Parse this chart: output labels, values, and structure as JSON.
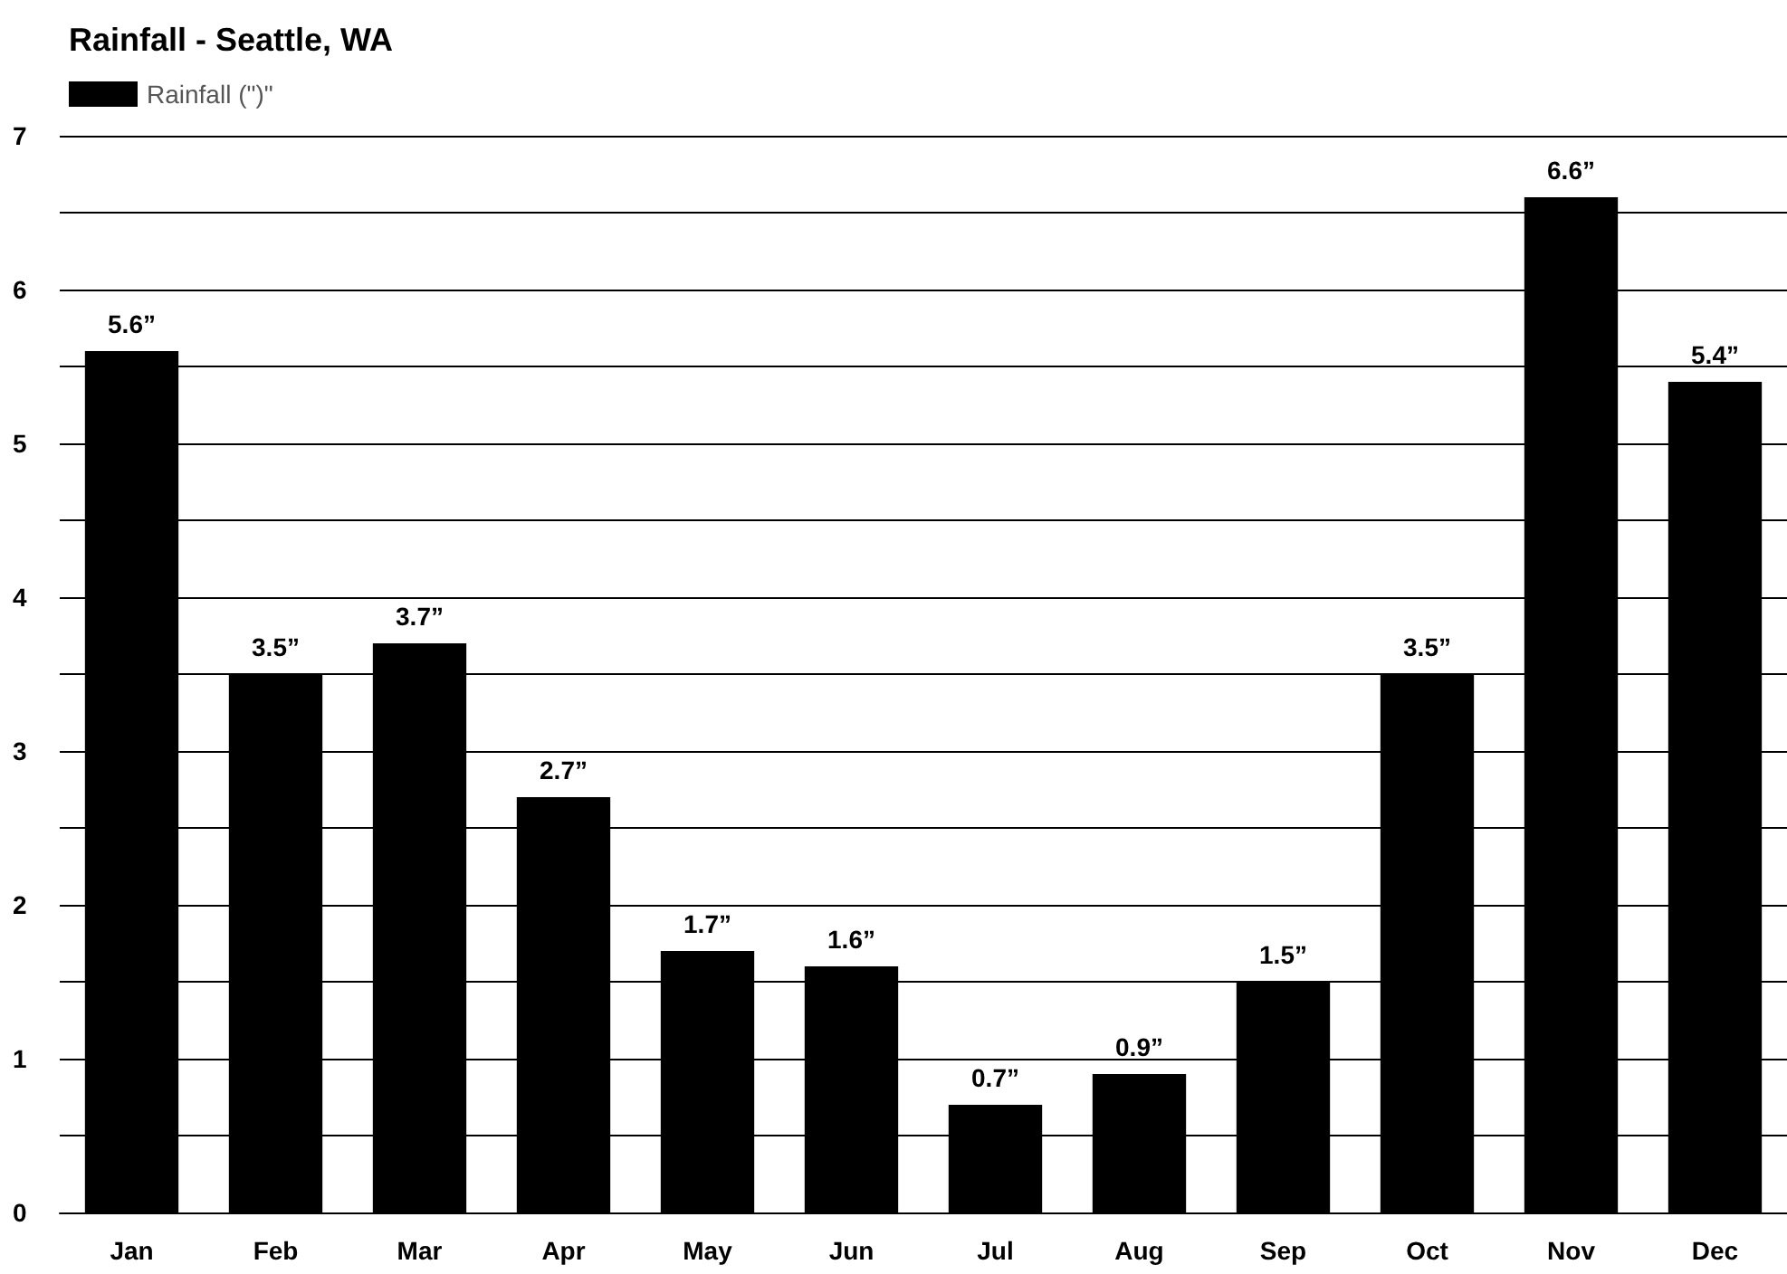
{
  "chart_data": {
    "type": "bar",
    "title": "Rainfall - Seattle, WA",
    "categories": [
      "Jan",
      "Feb",
      "Mar",
      "Apr",
      "May",
      "Jun",
      "Jul",
      "Aug",
      "Sep",
      "Oct",
      "Nov",
      "Dec"
    ],
    "series": [
      {
        "name": "Rainfall (\")\"",
        "color": "#000000",
        "values": [
          5.6,
          3.5,
          3.7,
          2.7,
          1.7,
          1.6,
          0.7,
          0.9,
          1.5,
          3.5,
          6.6,
          5.4
        ],
        "value_labels": [
          "5.6”",
          "3.5”",
          "3.7”",
          "2.7”",
          "1.7”",
          "1.6”",
          "0.7”",
          "0.9”",
          "1.5”",
          "3.5”",
          "6.6”",
          "5.4”"
        ]
      }
    ],
    "ylim": [
      0,
      7
    ],
    "yticks": [
      0,
      {
        "value": 0.5,
        "label": null
      },
      1,
      {
        "value": 1.5,
        "label": null
      },
      2,
      {
        "value": 2.5,
        "label": null
      },
      3,
      {
        "value": 3.5,
        "label": null
      },
      4,
      {
        "value": 4.5,
        "label": null
      },
      5,
      {
        "value": 5.5,
        "label": null
      },
      6,
      {
        "value": 6.5,
        "label": null
      },
      7
    ],
    "grid": "y",
    "legend": "top left"
  }
}
